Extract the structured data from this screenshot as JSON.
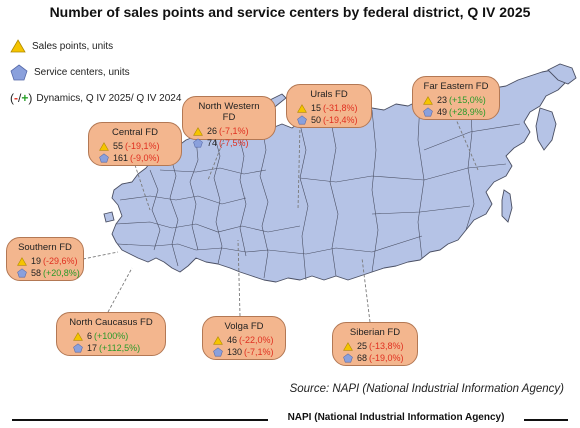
{
  "title": "Number of sales points and service centers by federal district, Q IV 2025",
  "legend": {
    "sales_points": "Sales points, units",
    "service_centers": "Service centers, units",
    "dynamics_prefix": "(",
    "dynamics_minus": "-",
    "dynamics_sep": "/",
    "dynamics_plus": "+",
    "dynamics_suffix": ")",
    "dynamics_label": "Dynamics, Q IV 2025/ Q IV 2024"
  },
  "districts": {
    "central": {
      "name": "Central FD",
      "sales": "55",
      "sales_change": "(-19,1%)",
      "service": "161",
      "service_change": "(-9,0%)"
    },
    "northwestern": {
      "name": "North Western FD",
      "sales": "26",
      "sales_change": "(-7,1%)",
      "service": "74",
      "service_change": "(-7,5%)"
    },
    "urals": {
      "name": "Urals FD",
      "sales": "15",
      "sales_change": "(-31,8%)",
      "service": "50",
      "service_change": "(-19,4%)"
    },
    "fareastern": {
      "name": "Far Eastern FD",
      "sales": "23",
      "sales_change": "(+15,0%)",
      "service": "49",
      "service_change": "(+28,9%)"
    },
    "southern": {
      "name": "Southern FD",
      "sales": "19",
      "sales_change": "(-29,6%)",
      "service": "58",
      "service_change": "(+20,8%)"
    },
    "northcaucasus": {
      "name": "North Caucasus FD",
      "sales": "6",
      "sales_change": "(+100%)",
      "service": "17",
      "service_change": "(+112,5%)"
    },
    "volga": {
      "name": "Volga FD",
      "sales": "46",
      "sales_change": "(-22,0%)",
      "service": "130",
      "service_change": "(-7,1%)"
    },
    "siberian": {
      "name": "Siberian FD",
      "sales": "25",
      "sales_change": "(-13,8%)",
      "service": "68",
      "service_change": "(-19,0%)"
    }
  },
  "colors": {
    "map_fill": "#b5c3e6",
    "map_stroke": "#4a4f63",
    "callout_fill": "#f3b68e",
    "triangle": "#f5c400",
    "pentagon": "#8aa0dc",
    "negative": "#e03020",
    "positive": "#2a9a2a"
  },
  "source": "Source: NAPI (National Industrial Information Agency)",
  "footer": "NAPI (National Industrial Information Agency)"
}
